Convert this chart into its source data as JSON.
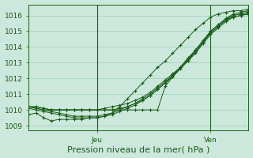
{
  "xlabel": "Pression niveau de la mer( hPa )",
  "background_color": "#cce8dc",
  "grid_color": "#9ecfb8",
  "line_color": "#1a5c1a",
  "marker_color": "#1a5c1a",
  "ylim": [
    1008.7,
    1016.7
  ],
  "yticks": [
    1009,
    1010,
    1011,
    1012,
    1013,
    1014,
    1015,
    1016
  ],
  "xlim": [
    0,
    29
  ],
  "vline_x": [
    9,
    24
  ],
  "vline_labels": [
    "Jeu",
    "Ven"
  ],
  "xlabel_fontsize": 8,
  "tick_fontsize": 6.5,
  "series": [
    [
      1009.7,
      1009.8,
      1009.5,
      1009.3,
      1009.4,
      1009.4,
      1009.4,
      1009.4,
      1009.5,
      1009.5,
      1009.6,
      1009.8,
      1010.2,
      1010.7,
      1011.2,
      1011.7,
      1012.2,
      1012.7,
      1013.1,
      1013.6,
      1014.1,
      1014.6,
      1015.1,
      1015.5,
      1015.9,
      1016.1,
      1016.2,
      1016.3,
      1016.3,
      1016.4
    ],
    [
      1010.2,
      1010.2,
      1010.1,
      1010.0,
      1010.0,
      1010.0,
      1010.0,
      1010.0,
      1010.0,
      1010.0,
      1010.0,
      1010.0,
      1010.0,
      1010.0,
      1010.0,
      1010.0,
      1010.0,
      1010.0,
      1011.5,
      1012.1,
      1012.7,
      1013.3,
      1013.8,
      1014.4,
      1015.0,
      1015.4,
      1015.8,
      1016.1,
      1016.2,
      1016.3
    ],
    [
      1010.2,
      1010.2,
      1010.1,
      1010.0,
      1010.0,
      1010.0,
      1010.0,
      1010.0,
      1010.0,
      1010.0,
      1010.0,
      1010.0,
      1010.1,
      1010.2,
      1010.4,
      1010.6,
      1010.9,
      1011.3,
      1011.7,
      1012.2,
      1012.7,
      1013.2,
      1013.7,
      1014.3,
      1014.9,
      1015.3,
      1015.7,
      1016.0,
      1016.1,
      1016.2
    ],
    [
      1010.2,
      1010.1,
      1010.0,
      1010.0,
      1010.0,
      1010.0,
      1010.0,
      1010.0,
      1010.0,
      1010.0,
      1010.1,
      1010.2,
      1010.3,
      1010.4,
      1010.6,
      1010.8,
      1011.1,
      1011.5,
      1011.9,
      1012.3,
      1012.7,
      1013.1,
      1013.6,
      1014.2,
      1014.8,
      1015.2,
      1015.6,
      1015.9,
      1016.0,
      1016.1
    ],
    [
      1010.2,
      1010.1,
      1010.0,
      1009.9,
      1009.8,
      1009.7,
      1009.6,
      1009.6,
      1009.6,
      1009.6,
      1009.7,
      1009.8,
      1010.0,
      1010.2,
      1010.4,
      1010.7,
      1011.0,
      1011.4,
      1011.8,
      1012.2,
      1012.7,
      1013.2,
      1013.8,
      1014.4,
      1015.0,
      1015.4,
      1015.8,
      1016.0,
      1016.1,
      1016.2
    ],
    [
      1010.1,
      1010.0,
      1009.9,
      1009.8,
      1009.7,
      1009.6,
      1009.5,
      1009.5,
      1009.5,
      1009.5,
      1009.6,
      1009.7,
      1009.9,
      1010.1,
      1010.3,
      1010.6,
      1010.9,
      1011.3,
      1011.7,
      1012.1,
      1012.6,
      1013.1,
      1013.7,
      1014.3,
      1014.9,
      1015.3,
      1015.7,
      1015.9,
      1016.0,
      1016.1
    ]
  ]
}
